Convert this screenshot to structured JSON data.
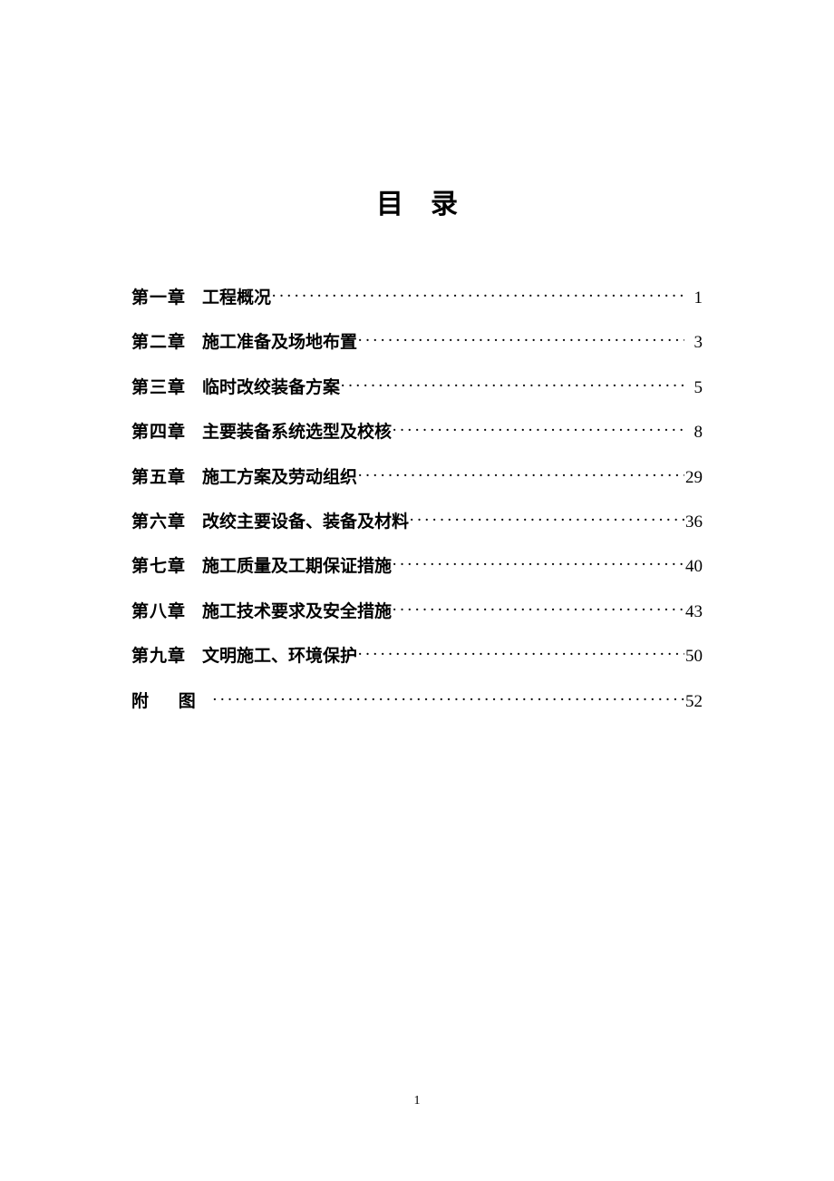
{
  "title": "目录",
  "toc": [
    {
      "chapter": "第一章",
      "name": "工程概况",
      "page": "1"
    },
    {
      "chapter": "第二章",
      "name": "施工准备及场地布置",
      "page": "3"
    },
    {
      "chapter": "第三章",
      "name": "临时改绞装备方案",
      "page": "5"
    },
    {
      "chapter": "第四章",
      "name": "主要装备系统选型及校核",
      "page": "8"
    },
    {
      "chapter": "第五章",
      "name": "施工方案及劳动组织",
      "page": "29"
    },
    {
      "chapter": "第六章",
      "name": "改绞主要设备、装备及材料",
      "page": "36"
    },
    {
      "chapter": "第七章",
      "name": "施工质量及工期保证措施",
      "page": "40"
    },
    {
      "chapter": "第八章",
      "name": "施工技术要求及安全措施",
      "page": "43"
    },
    {
      "chapter": "第九章",
      "name": "文明施工、环境保护",
      "page": "50"
    },
    {
      "chapter": "附 图",
      "name": "",
      "page": "52"
    }
  ],
  "pageNumber": "1"
}
